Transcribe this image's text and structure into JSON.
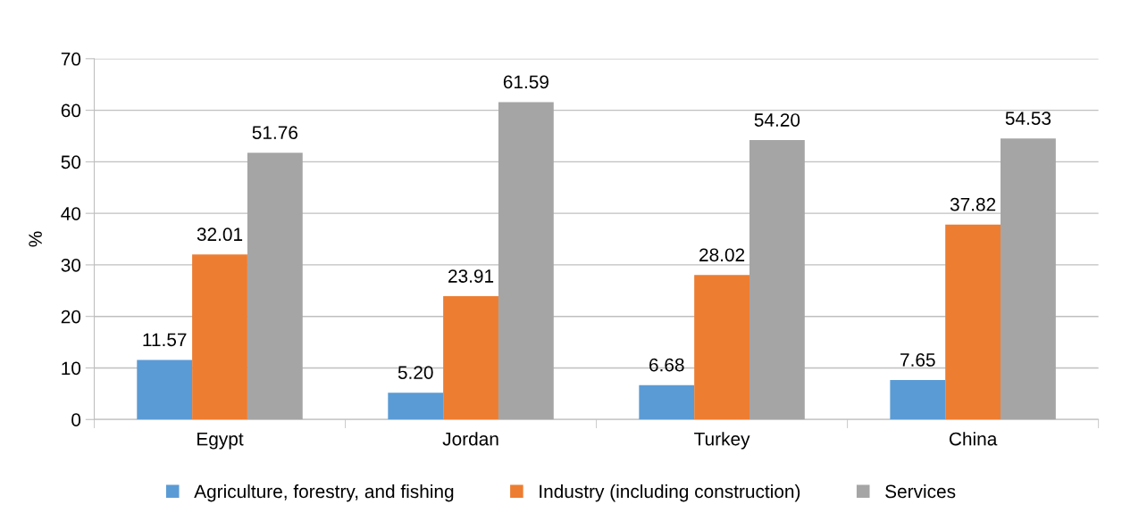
{
  "chart_data": {
    "type": "bar",
    "ylabel": "%",
    "categories": [
      "Egypt",
      "Jordan",
      "Turkey",
      "China"
    ],
    "series": [
      {
        "name": "Agriculture, forestry, and fishing",
        "color": "#5b9bd5",
        "values": [
          11.57,
          5.2,
          6.68,
          7.65
        ],
        "value_labels": [
          "11.57",
          "5.20",
          "6.68",
          "7.65"
        ]
      },
      {
        "name": "Industry (including construction)",
        "color": "#ed7d31",
        "values": [
          32.01,
          23.91,
          28.02,
          37.82
        ],
        "value_labels": [
          "32.01",
          "23.91",
          "28.02",
          "37.82"
        ]
      },
      {
        "name": "Services",
        "color": "#a5a5a5",
        "values": [
          51.76,
          61.59,
          54.2,
          54.53
        ],
        "value_labels": [
          "51.76",
          "61.59",
          "54.20",
          "54.53"
        ]
      }
    ],
    "ylim": [
      0,
      70
    ],
    "yticks": [
      0,
      10,
      20,
      30,
      40,
      50,
      60,
      70
    ],
    "grid": "y",
    "legend": "bottom"
  }
}
